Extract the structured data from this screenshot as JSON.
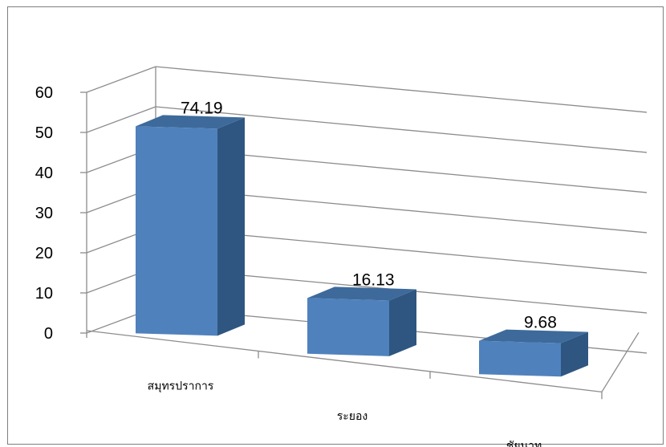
{
  "chart_data": {
    "type": "bar",
    "three_d": true,
    "categories": [
      "สมุทรปราการ",
      "ระยอง",
      "ชัยนาท"
    ],
    "values": [
      74.19,
      16.13,
      9.68
    ],
    "data_labels": [
      "74.19",
      "16.13",
      "9.68"
    ],
    "ylim": [
      0,
      60
    ],
    "yticks": [
      "0",
      "10",
      "20",
      "30",
      "40",
      "50",
      "60"
    ],
    "grid": true,
    "bar_colors": {
      "front": "#4f81bd",
      "top": "#3d6a9b",
      "side": "#2e5680"
    },
    "legend": "none"
  }
}
